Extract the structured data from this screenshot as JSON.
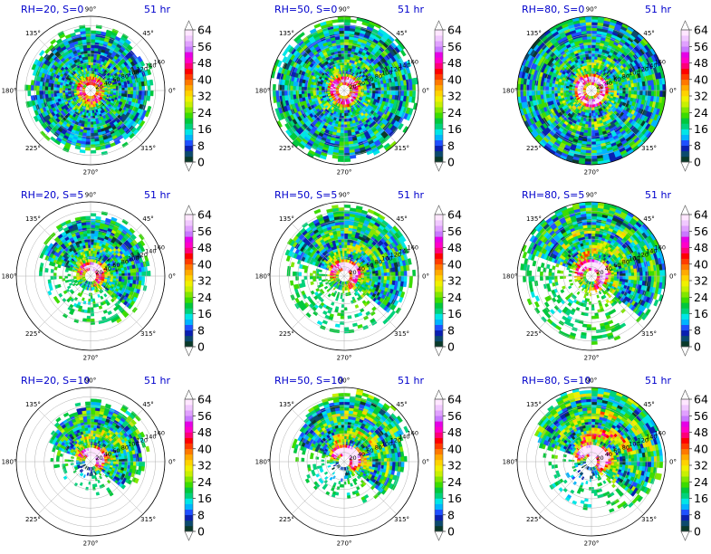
{
  "figure": {
    "rows": 3,
    "cols": 3
  },
  "panels": [
    {
      "title": "RH=20, S=0",
      "time": "51 hr",
      "rh": 20,
      "shear": 0
    },
    {
      "title": "RH=50, S=0",
      "time": "51 hr",
      "rh": 50,
      "shear": 0
    },
    {
      "title": "RH=80, S=0",
      "time": "51 hr",
      "rh": 80,
      "shear": 0
    },
    {
      "title": "RH=20, S=5",
      "time": "51 hr",
      "rh": 20,
      "shear": 5
    },
    {
      "title": "RH=50, S=5",
      "time": "51 hr",
      "rh": 50,
      "shear": 5
    },
    {
      "title": "RH=80, S=5",
      "time": "51 hr",
      "rh": 80,
      "shear": 5
    },
    {
      "title": "RH=20, S=10",
      "time": "51 hr",
      "rh": 20,
      "shear": 10
    },
    {
      "title": "RH=50, S=10",
      "time": "51 hr",
      "rh": 50,
      "shear": 10
    },
    {
      "title": "RH=80, S=10",
      "time": "51 hr",
      "rh": 80,
      "shear": 10
    }
  ],
  "polar": {
    "azimuth_labels": [
      "0°",
      "45°",
      "90°",
      "135°",
      "180°",
      "225°",
      "270°",
      "315°"
    ],
    "azimuth_degrees": [
      0,
      45,
      90,
      135,
      180,
      225,
      270,
      315
    ],
    "radius_ticks": [
      20,
      40,
      60,
      80,
      100,
      120,
      140,
      160
    ],
    "radius_tick_labels": [
      "20",
      "40",
      "60",
      "80",
      "100",
      "120",
      "140",
      "160"
    ],
    "radius_max": 160,
    "grid": true
  },
  "colorbar": {
    "tick_labels": [
      "0",
      "8",
      "16",
      "24",
      "32",
      "40",
      "48",
      "56",
      "64"
    ],
    "tick_values": [
      0,
      8,
      16,
      24,
      32,
      40,
      48,
      56,
      64
    ],
    "extend": "both",
    "colors": [
      "#0a3a2a",
      "#0b4a6e",
      "#0a1fb0",
      "#1e50ff",
      "#00b4ff",
      "#00e6e6",
      "#00d27a",
      "#00c83c",
      "#3cdc00",
      "#82e600",
      "#c8f000",
      "#f0f000",
      "#ffd200",
      "#ffaa00",
      "#ff7800",
      "#ff3c00",
      "#ff0000",
      "#ff0078",
      "#ff00c8",
      "#e600e6",
      "#c878ff",
      "#e0a0ff",
      "#f0c8ff",
      "#ffe6ff"
    ],
    "under_color": "#ffffff",
    "over_color": "#ffffff"
  },
  "chart_data": {
    "type": "heatmap",
    "coordinate_system": "polar",
    "color_range": [
      0,
      64
    ],
    "radius_range": [
      0,
      160
    ],
    "panels": [
      {
        "rh": 20,
        "shear": 0,
        "structure": "spiral rainbands, partial coverage",
        "peak_value": 60
      },
      {
        "rh": 50,
        "shear": 0,
        "structure": "symmetric eyewall with clear eye, full coverage",
        "peak_value": 60
      },
      {
        "rh": 80,
        "shear": 0,
        "structure": "large symmetric storm, strong eyewall",
        "peak_value": 64
      },
      {
        "rh": 20,
        "shear": 5,
        "structure": "asymmetric, convection northeast",
        "peak_value": 56
      },
      {
        "rh": 50,
        "shear": 5,
        "structure": "asymmetric, convection north and east",
        "peak_value": 56
      },
      {
        "rh": 80,
        "shear": 5,
        "structure": "asymmetric, convection northeast",
        "peak_value": 60
      },
      {
        "rh": 20,
        "shear": 10,
        "structure": "scattered cells, mostly northeast",
        "peak_value": 56
      },
      {
        "rh": 50,
        "shear": 10,
        "structure": "convection confined to northeast quadrant",
        "peak_value": 64
      },
      {
        "rh": 80,
        "shear": 10,
        "structure": "convection confined to north and east",
        "peak_value": 60
      }
    ]
  }
}
